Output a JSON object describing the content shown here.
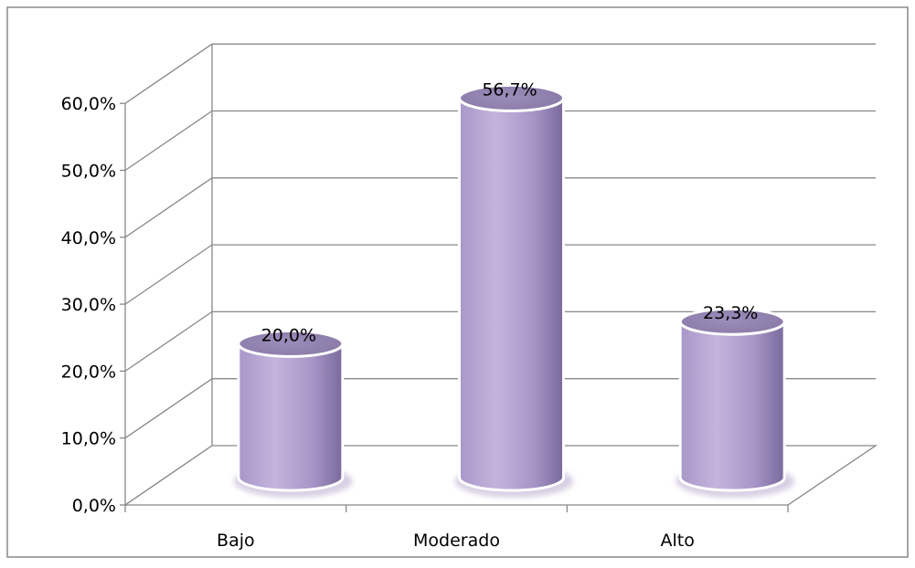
{
  "chart_data": {
    "type": "bar",
    "categories": [
      "Bajo",
      "Moderado",
      "Alto"
    ],
    "values": [
      20.0,
      56.7,
      23.3
    ],
    "data_labels": [
      "20,0%",
      "56,7%",
      "23,3%"
    ],
    "y_ticks": [
      "0,0%",
      "10,0%",
      "20,0%",
      "30,0%",
      "40,0%",
      "50,0%",
      "60,0%"
    ],
    "ylim": [
      0,
      60
    ],
    "title": "",
    "xlabel": "",
    "ylabel": "",
    "grid": true,
    "legend": "none",
    "colors": {
      "bar_light": "#c4b4dc",
      "bar_mid": "#a897c8",
      "bar_dark": "#7a6a9c",
      "bar_top": "#8a7aa8",
      "grid": "#888888",
      "axis": "#888888",
      "frame": "#888888",
      "text": "#000000"
    }
  }
}
